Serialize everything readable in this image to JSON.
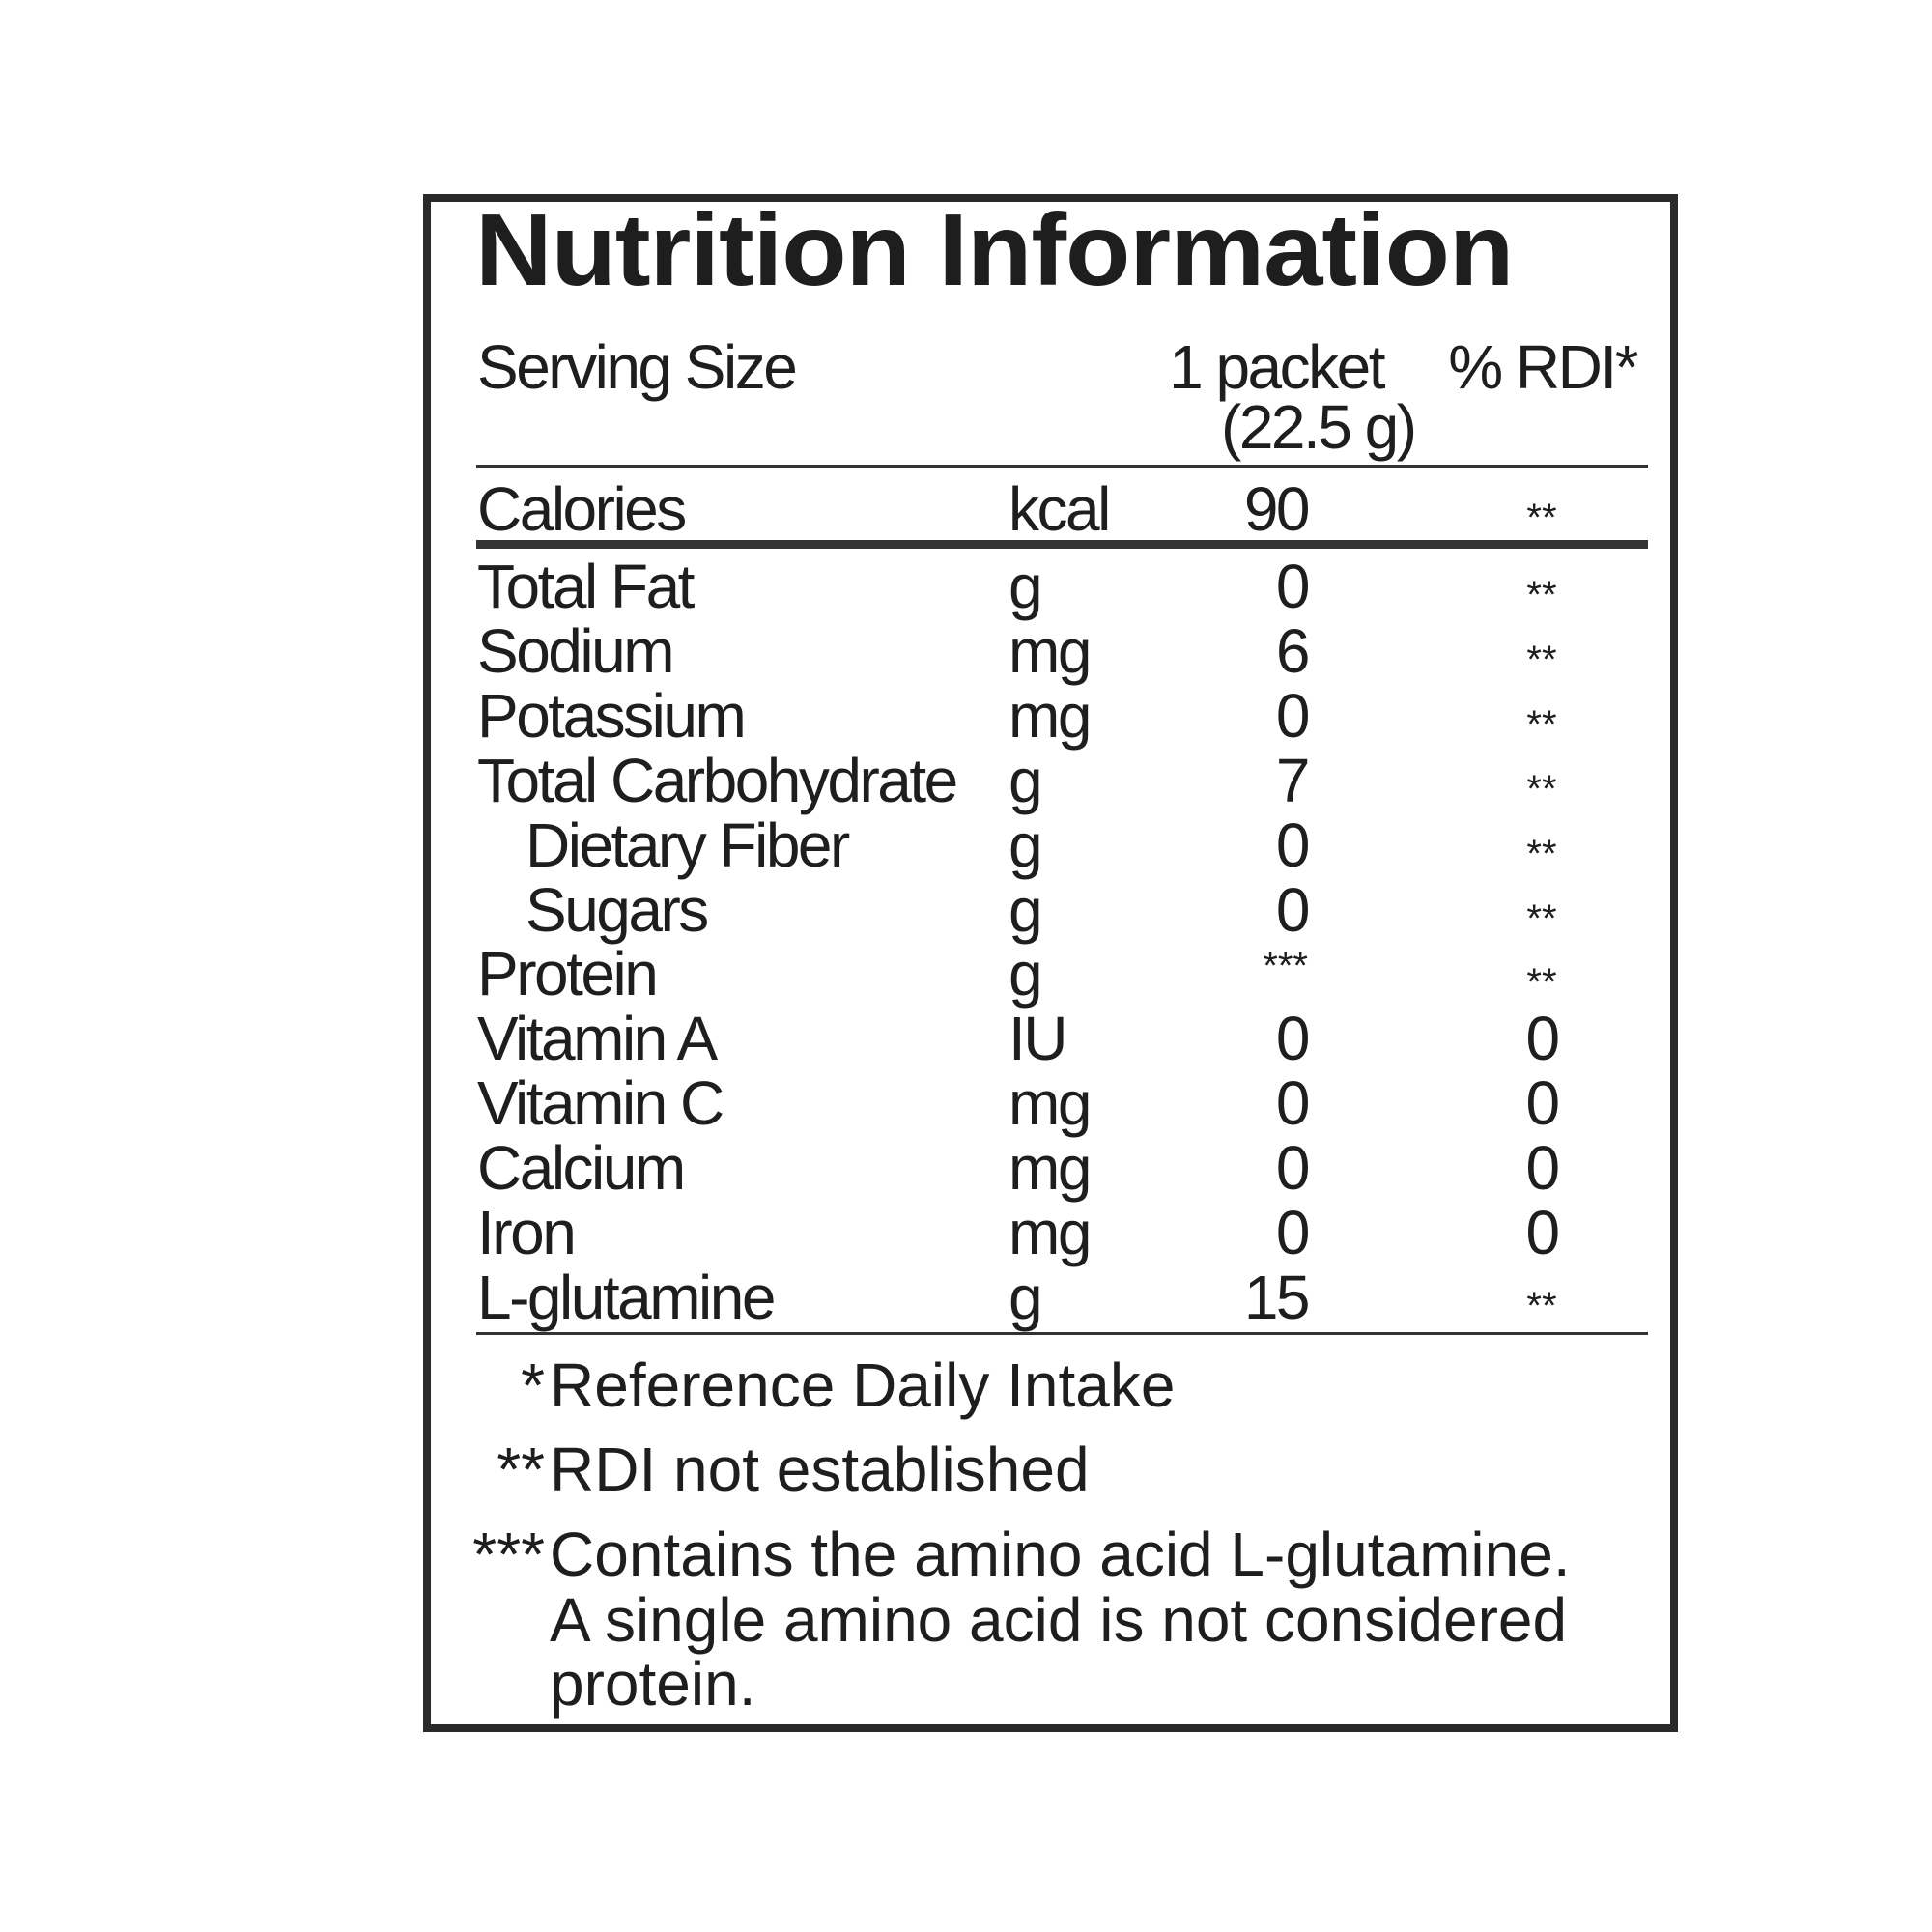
{
  "title": "Nutrition Information",
  "serving": {
    "label": "Serving Size",
    "amount": "1 packet",
    "weight": "(22.5 g)",
    "rdi_header": "% RDI*"
  },
  "calories": {
    "name": "Calories",
    "unit": "kcal",
    "value": "90",
    "rdi": "**"
  },
  "nutrients": [
    {
      "name": "Total Fat",
      "unit": "g",
      "value": "0",
      "rdi": "**",
      "indent": false
    },
    {
      "name": "Sodium",
      "unit": "mg",
      "value": "6",
      "rdi": "**",
      "indent": false
    },
    {
      "name": "Potassium",
      "unit": "mg",
      "value": "0",
      "rdi": "**",
      "indent": false
    },
    {
      "name": "Total Carbohydrate",
      "unit": "g",
      "value": "7",
      "rdi": "**",
      "indent": false
    },
    {
      "name": "Dietary Fiber",
      "unit": "g",
      "value": "0",
      "rdi": "**",
      "indent": true
    },
    {
      "name": "Sugars",
      "unit": "g",
      "value": "0",
      "rdi": "**",
      "indent": true
    },
    {
      "name": "Protein",
      "unit": "g",
      "value": "***",
      "rdi": "**",
      "indent": false
    },
    {
      "name": "Vitamin A",
      "unit": "IU",
      "value": "0",
      "rdi": "0",
      "indent": false
    },
    {
      "name": "Vitamin C",
      "unit": "mg",
      "value": "0",
      "rdi": "0",
      "indent": false
    },
    {
      "name": "Calcium",
      "unit": "mg",
      "value": "0",
      "rdi": "0",
      "indent": false
    },
    {
      "name": "Iron",
      "unit": "mg",
      "value": "0",
      "rdi": "0",
      "indent": false
    },
    {
      "name": "L-glutamine",
      "unit": "g",
      "value": "15",
      "rdi": "**",
      "indent": false
    }
  ],
  "footnotes": [
    {
      "mark": "*",
      "lines": [
        "Reference Daily Intake"
      ]
    },
    {
      "mark": "**",
      "lines": [
        "RDI not established"
      ]
    },
    {
      "mark": "***",
      "lines": [
        "Contains the amino acid L-glutamine.",
        "A single amino acid is not considered",
        "protein."
      ]
    }
  ]
}
